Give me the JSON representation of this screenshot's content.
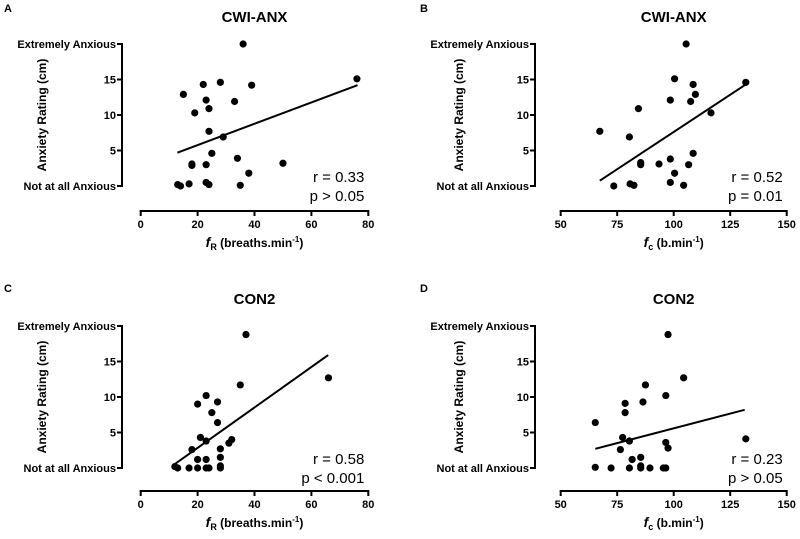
{
  "chart_data": [
    {
      "type": "scatter",
      "panel_label": "A",
      "title": "CWI-ANX",
      "xlabel": {
        "symbol": "f",
        "sub": "R",
        "unit": "(breaths.min",
        "sup": "-1",
        "close": ")"
      },
      "ylabel": "Anxiety Rating (cm)",
      "xlim": [
        0,
        80
      ],
      "xticks": [
        "0",
        "20",
        "40",
        "60",
        "80"
      ],
      "xtick_values": [
        0,
        20,
        40,
        60,
        80
      ],
      "ylim": [
        0,
        20
      ],
      "yticks": [
        "Not at all Anxious",
        "5",
        "10",
        "15",
        "Extremely Anxious"
      ],
      "ytick_values": [
        0,
        5,
        10,
        15,
        20
      ],
      "points": [
        [
          36,
          20
        ],
        [
          76,
          15.1
        ],
        [
          22,
          14.3
        ],
        [
          28,
          14.6
        ],
        [
          39,
          14.2
        ],
        [
          15,
          12.9
        ],
        [
          23,
          12.1
        ],
        [
          33,
          11.9
        ],
        [
          24,
          10.9
        ],
        [
          19,
          10.3
        ],
        [
          24,
          7.7
        ],
        [
          29,
          6.9
        ],
        [
          25,
          4.6
        ],
        [
          34,
          3.9
        ],
        [
          50,
          3.2
        ],
        [
          18,
          3.1
        ],
        [
          18,
          2.9
        ],
        [
          23,
          3.0
        ],
        [
          38,
          1.8
        ],
        [
          13,
          0.2
        ],
        [
          14,
          0
        ],
        [
          17,
          0.3
        ],
        [
          23,
          0.5
        ],
        [
          24,
          0.2
        ],
        [
          35,
          0.1
        ]
      ],
      "fit_line": [
        [
          12.9,
          4.7
        ],
        [
          76.2,
          14.2
        ]
      ],
      "stats": {
        "r": "r = 0.33",
        "p": "p > 0.05"
      },
      "grid": false
    },
    {
      "type": "scatter",
      "panel_label": "B",
      "title": "CWI-ANX",
      "xlabel": {
        "symbol": "f",
        "sub": "c",
        "unit": "(b.min",
        "sup": "-1",
        "close": ")"
      },
      "ylabel": "Anxiety Rating (cm)",
      "xlim": [
        50,
        150
      ],
      "xticks": [
        "50",
        "75",
        "100",
        "125",
        "150"
      ],
      "xtick_values": [
        50,
        75,
        100,
        125,
        150
      ],
      "ylim": [
        0,
        20
      ],
      "yticks": [
        "Not at all Anxious",
        "5",
        "10",
        "15",
        "Extremely Anxious"
      ],
      "ytick_values": [
        0,
        5,
        10,
        15,
        20
      ],
      "points": [
        [
          105.5,
          20
        ],
        [
          100.4,
          15.1
        ],
        [
          108.6,
          14.3
        ],
        [
          131.9,
          14.6
        ],
        [
          109.6,
          12.9
        ],
        [
          98.5,
          12.1
        ],
        [
          107.5,
          11.9
        ],
        [
          84.4,
          10.9
        ],
        [
          116.5,
          10.3
        ],
        [
          67.3,
          7.7
        ],
        [
          80.4,
          6.9
        ],
        [
          108.6,
          4.6
        ],
        [
          98.5,
          3.8
        ],
        [
          85.4,
          3.3
        ],
        [
          85.4,
          3.0
        ],
        [
          93.5,
          3.1
        ],
        [
          106.6,
          3.0
        ],
        [
          100.4,
          1.8
        ],
        [
          98.5,
          0.5
        ],
        [
          73.5,
          0
        ],
        [
          80.7,
          0.3
        ],
        [
          82.4,
          0.1
        ],
        [
          104.4,
          0.1
        ]
      ],
      "fit_line": [
        [
          67.3,
          0.75
        ],
        [
          131.9,
          14.3
        ]
      ],
      "stats": {
        "r": "r = 0.52",
        "p": "p = 0.01"
      },
      "grid": false
    },
    {
      "type": "scatter",
      "panel_label": "C",
      "title": "CON2",
      "xlabel": {
        "symbol": "f",
        "sub": "R",
        "unit": "(breaths.min",
        "sup": "-1",
        "close": ")"
      },
      "ylabel": "Anxiety Rating (cm)",
      "xlim": [
        0,
        80
      ],
      "xticks": [
        "0",
        "20",
        "40",
        "60",
        "80"
      ],
      "xtick_values": [
        0,
        20,
        40,
        60,
        80
      ],
      "ylim": [
        0,
        20
      ],
      "yticks": [
        "Not at all Anxious",
        "5",
        "10",
        "15",
        "Extremely Anxious"
      ],
      "ytick_values": [
        0,
        5,
        10,
        15,
        20
      ],
      "points": [
        [
          37,
          18.8
        ],
        [
          66,
          12.7
        ],
        [
          35,
          11.7
        ],
        [
          23,
          10.2
        ],
        [
          20,
          9.0
        ],
        [
          27,
          9.3
        ],
        [
          25,
          7.8
        ],
        [
          27,
          6.4
        ],
        [
          21,
          4.3
        ],
        [
          23,
          3.8
        ],
        [
          31,
          3.5
        ],
        [
          32,
          4.0
        ],
        [
          18,
          2.6
        ],
        [
          28,
          2.7
        ],
        [
          20,
          1.2
        ],
        [
          23,
          1.2
        ],
        [
          28,
          1.5
        ],
        [
          12,
          0.2
        ],
        [
          13,
          0
        ],
        [
          17,
          0
        ],
        [
          20,
          0
        ],
        [
          23,
          0
        ],
        [
          24,
          0
        ],
        [
          28,
          0.3
        ],
        [
          28,
          0
        ]
      ],
      "fit_line": [
        [
          11.8,
          0.5
        ],
        [
          65.9,
          15.9
        ]
      ],
      "stats": {
        "r": "r = 0.58",
        "p": "p < 0.001"
      },
      "grid": false
    },
    {
      "type": "scatter",
      "panel_label": "D",
      "title": "CON2",
      "xlabel": {
        "symbol": "f",
        "sub": "c",
        "unit": "(b.min",
        "sup": "-1",
        "close": ")"
      },
      "ylabel": "Anxiety Rating (cm)",
      "xlim": [
        50,
        150
      ],
      "xticks": [
        "50",
        "75",
        "100",
        "125",
        "150"
      ],
      "xtick_values": [
        50,
        75,
        100,
        125,
        150
      ],
      "ylim": [
        0,
        20
      ],
      "yticks": [
        "Not at all Anxious",
        "5",
        "10",
        "15",
        "Extremely Anxious"
      ],
      "ytick_values": [
        0,
        5,
        10,
        15,
        20
      ],
      "points": [
        [
          97.5,
          18.8
        ],
        [
          104.4,
          12.7
        ],
        [
          87.5,
          11.7
        ],
        [
          96.5,
          10.2
        ],
        [
          78.5,
          9.1
        ],
        [
          86.4,
          9.3
        ],
        [
          78.5,
          7.8
        ],
        [
          65.3,
          6.4
        ],
        [
          77.4,
          4.3
        ],
        [
          80.4,
          3.8
        ],
        [
          76.4,
          2.6
        ],
        [
          96.5,
          3.6
        ],
        [
          97.5,
          2.8
        ],
        [
          131.9,
          4.1
        ],
        [
          81.6,
          1.2
        ],
        [
          85.4,
          1.5
        ],
        [
          65.3,
          0.1
        ],
        [
          72.3,
          0
        ],
        [
          80.4,
          0
        ],
        [
          85.4,
          0.3
        ],
        [
          85.4,
          0
        ],
        [
          89.5,
          0
        ],
        [
          95.4,
          0
        ],
        [
          96.5,
          0
        ]
      ],
      "fit_line": [
        [
          65.3,
          2.7
        ],
        [
          131.4,
          8.2
        ]
      ],
      "stats": {
        "r": "r = 0.23",
        "p": "p > 0.05"
      },
      "grid": false
    }
  ]
}
